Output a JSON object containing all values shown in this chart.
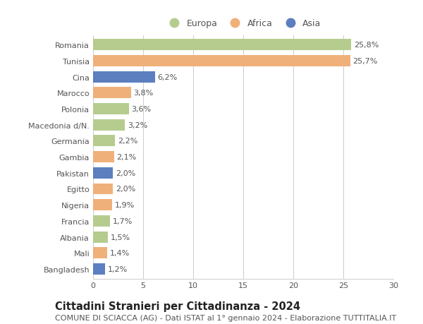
{
  "categories": [
    "Romania",
    "Tunisia",
    "Cina",
    "Marocco",
    "Polonia",
    "Macedonia d/N.",
    "Germania",
    "Gambia",
    "Pakistan",
    "Egitto",
    "Nigeria",
    "Francia",
    "Albania",
    "Mali",
    "Bangladesh"
  ],
  "values": [
    25.8,
    25.7,
    6.2,
    3.8,
    3.6,
    3.2,
    2.2,
    2.1,
    2.0,
    2.0,
    1.9,
    1.7,
    1.5,
    1.4,
    1.2
  ],
  "labels": [
    "25,8%",
    "25,7%",
    "6,2%",
    "3,8%",
    "3,6%",
    "3,2%",
    "2,2%",
    "2,1%",
    "2,0%",
    "2,0%",
    "1,9%",
    "1,7%",
    "1,5%",
    "1,4%",
    "1,2%"
  ],
  "continents": [
    "Europa",
    "Africa",
    "Asia",
    "Africa",
    "Europa",
    "Europa",
    "Europa",
    "Africa",
    "Asia",
    "Africa",
    "Africa",
    "Europa",
    "Europa",
    "Africa",
    "Asia"
  ],
  "colors": {
    "Europa": "#b5cc8e",
    "Africa": "#f0b07a",
    "Asia": "#5b7fbf"
  },
  "title": "Cittadini Stranieri per Cittadinanza - 2024",
  "subtitle": "COMUNE DI SCIACCA (AG) - Dati ISTAT al 1° gennaio 2024 - Elaborazione TUTTITALIA.IT",
  "xlim": [
    0,
    30
  ],
  "xticks": [
    0,
    5,
    10,
    15,
    20,
    25,
    30
  ],
  "background_color": "#ffffff",
  "grid_color": "#cccccc",
  "bar_height": 0.7,
  "title_fontsize": 10.5,
  "subtitle_fontsize": 8,
  "label_fontsize": 8,
  "tick_fontsize": 8,
  "legend_fontsize": 9,
  "text_color": "#555555"
}
